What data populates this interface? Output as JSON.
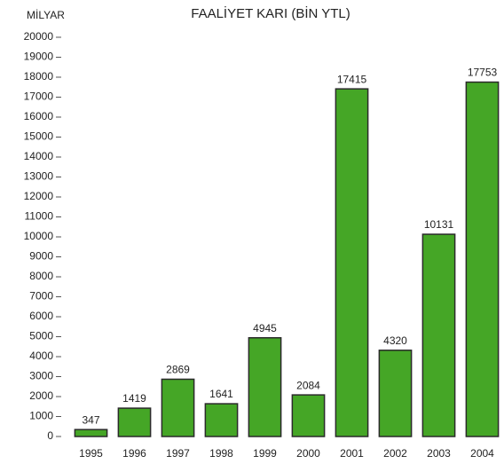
{
  "chart_data": {
    "type": "bar",
    "title": "FAALİYET KARI (BİN YTL)",
    "y_label": "MİLYAR",
    "categories": [
      "1995",
      "1996",
      "1997",
      "1998",
      "1999",
      "2000",
      "2001",
      "2002",
      "2003",
      "2004"
    ],
    "values": [
      347,
      1419,
      2869,
      1641,
      4945,
      2084,
      17415,
      4320,
      10131,
      17753
    ],
    "color": "#45a626",
    "ylim": [
      0,
      20000
    ],
    "yticks": [
      0,
      1000,
      2000,
      3000,
      4000,
      5000,
      6000,
      7000,
      8000,
      9000,
      10000,
      11000,
      12000,
      13000,
      14000,
      15000,
      16000,
      17000,
      18000,
      19000,
      20000
    ],
    "grid": false
  }
}
